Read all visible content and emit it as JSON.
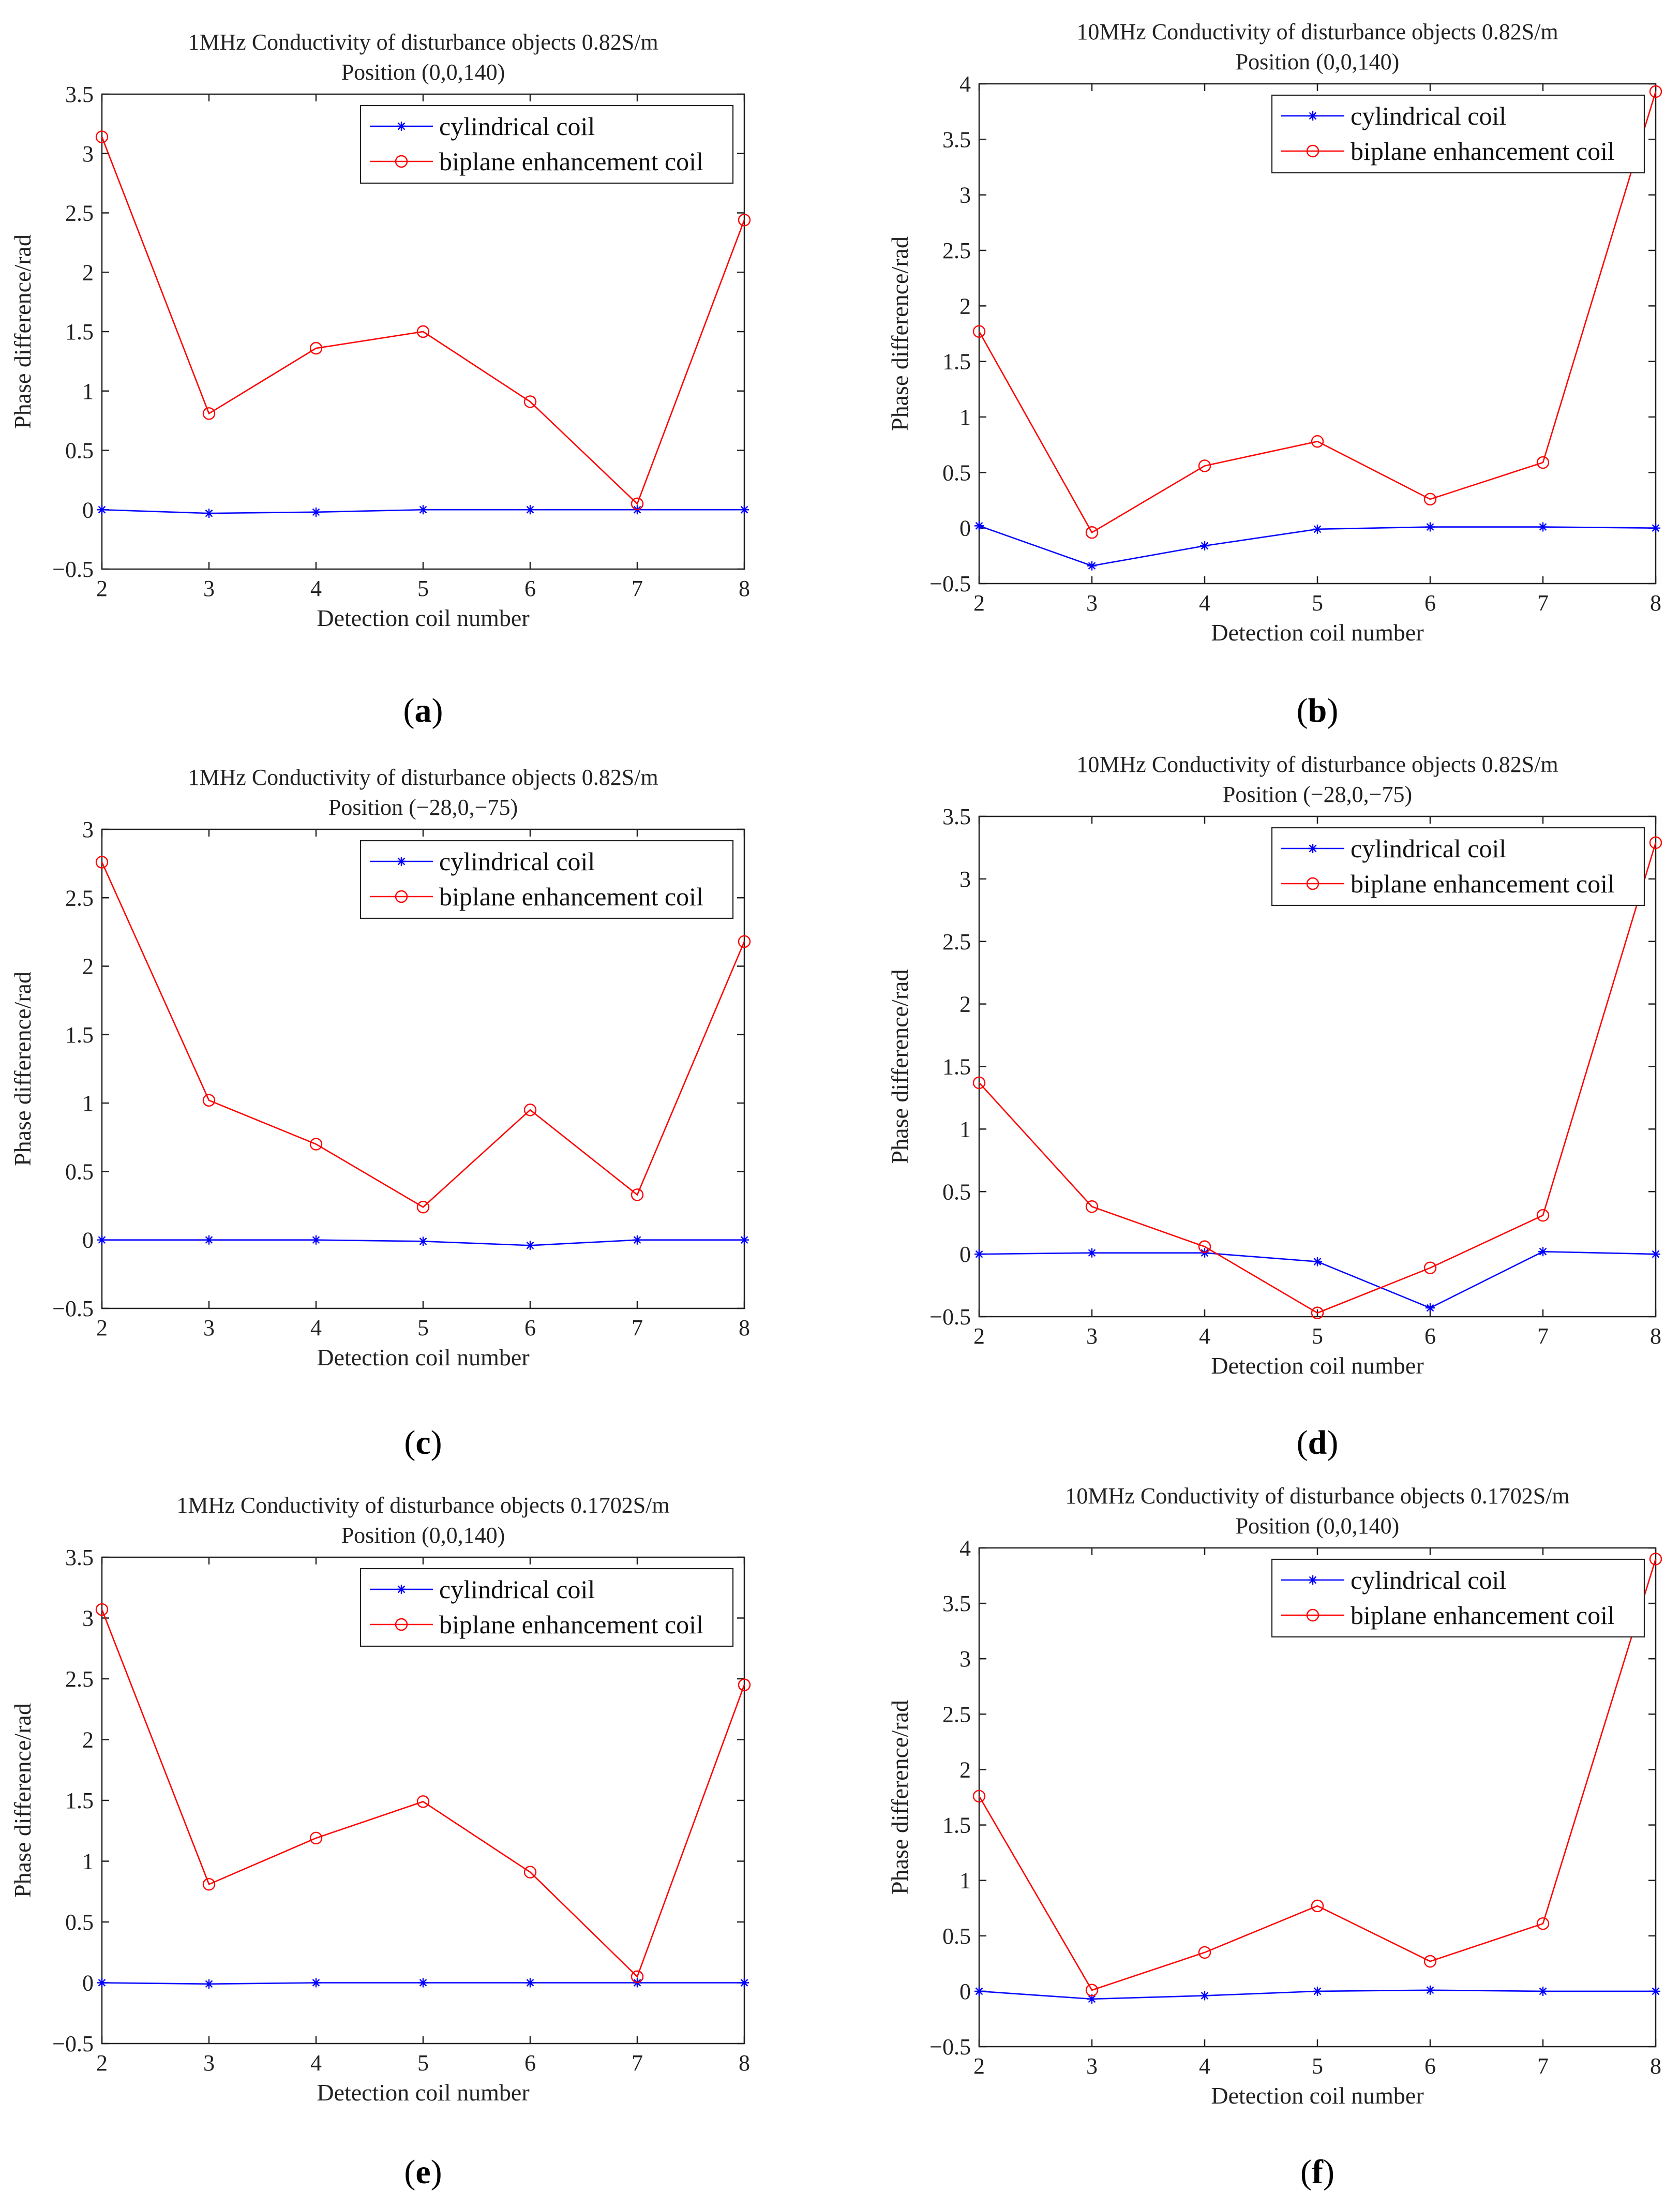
{
  "figure": {
    "legend": [
      "cylindrical coil",
      "biplane enhancement coil"
    ],
    "series_colors": [
      "#0000ff",
      "#ff0000"
    ],
    "marker_icons": [
      "asterisk-icon",
      "circle-icon"
    ]
  },
  "chart_data": [
    {
      "type": "line",
      "caption_letter": "a",
      "title": [
        "1MHz Conductivity of disturbance objects 0.82S/m",
        "Position (0,0,140)"
      ],
      "xlabel": "Detection coil number",
      "ylabel": "Phase difference/rad",
      "x": [
        2,
        3,
        4,
        5,
        6,
        7,
        8
      ],
      "xlim": [
        2,
        8
      ],
      "ylim": [
        -0.5,
        3.5
      ],
      "yticks": [
        -0.5,
        0,
        0.5,
        1,
        1.5,
        2,
        2.5,
        3,
        3.5
      ],
      "ytick_labels": [
        "−0.5",
        "0",
        "0.5",
        "1",
        "1.5",
        "2",
        "2.5",
        "3",
        "3.5"
      ],
      "xtick_labels": [
        "2",
        "3",
        "4",
        "5",
        "6",
        "7",
        "8"
      ],
      "legend_position": "top-right",
      "series": [
        {
          "name": "cylindrical coil",
          "values": [
            0.0,
            -0.03,
            -0.02,
            0.0,
            0.0,
            0.0,
            0.0
          ]
        },
        {
          "name": "biplane enhancement coil",
          "values": [
            3.14,
            0.81,
            1.36,
            1.5,
            0.91,
            0.05,
            2.44
          ]
        }
      ]
    },
    {
      "type": "line",
      "caption_letter": "b",
      "title": [
        "10MHz Conductivity of disturbance objects 0.82S/m",
        "Position (0,0,140)"
      ],
      "xlabel": "Detection coil number",
      "ylabel": "Phase difference/rad",
      "x": [
        2,
        3,
        4,
        5,
        6,
        7,
        8
      ],
      "xlim": [
        2,
        8
      ],
      "ylim": [
        -0.5,
        4
      ],
      "yticks": [
        -0.5,
        0,
        0.5,
        1,
        1.5,
        2,
        2.5,
        3,
        3.5,
        4
      ],
      "ytick_labels": [
        "−0.5",
        "0",
        "0.5",
        "1",
        "1.5",
        "2",
        "2.5",
        "3",
        "3.5",
        "4"
      ],
      "xtick_labels": [
        "2",
        "3",
        "4",
        "5",
        "6",
        "7",
        "8"
      ],
      "legend_position": "top-right",
      "series": [
        {
          "name": "cylindrical coil",
          "values": [
            0.02,
            -0.34,
            -0.16,
            -0.01,
            0.01,
            0.01,
            0.0
          ]
        },
        {
          "name": "biplane enhancement coil",
          "values": [
            1.77,
            -0.04,
            0.56,
            0.78,
            0.26,
            0.59,
            3.93
          ]
        }
      ]
    },
    {
      "type": "line",
      "caption_letter": "c",
      "title": [
        "1MHz Conductivity of disturbance objects 0.82S/m",
        "Position (−28,0,−75)"
      ],
      "xlabel": "Detection coil number",
      "ylabel": "Phase difference/rad",
      "x": [
        2,
        3,
        4,
        5,
        6,
        7,
        8
      ],
      "xlim": [
        2,
        8
      ],
      "ylim": [
        -0.5,
        3
      ],
      "yticks": [
        -0.5,
        0,
        0.5,
        1,
        1.5,
        2,
        2.5,
        3
      ],
      "ytick_labels": [
        "−0.5",
        "0",
        "0.5",
        "1",
        "1.5",
        "2",
        "2.5",
        "3"
      ],
      "xtick_labels": [
        "2",
        "3",
        "4",
        "5",
        "6",
        "7",
        "8"
      ],
      "legend_position": "top-right",
      "series": [
        {
          "name": "cylindrical coil",
          "values": [
            0.0,
            0.0,
            0.0,
            -0.01,
            -0.04,
            0.0,
            0.0
          ]
        },
        {
          "name": "biplane enhancement coil",
          "values": [
            2.76,
            1.02,
            0.7,
            0.24,
            0.95,
            0.33,
            2.18
          ]
        }
      ]
    },
    {
      "type": "line",
      "caption_letter": "d",
      "title": [
        "10MHz Conductivity of disturbance objects 0.82S/m",
        "Position (−28,0,−75)"
      ],
      "xlabel": "Detection coil number",
      "ylabel": "Phase difference/rad",
      "x": [
        2,
        3,
        4,
        5,
        6,
        7,
        8
      ],
      "xlim": [
        2,
        8
      ],
      "ylim": [
        -0.5,
        3.5
      ],
      "yticks": [
        -0.5,
        0,
        0.5,
        1,
        1.5,
        2,
        2.5,
        3,
        3.5
      ],
      "ytick_labels": [
        "−0.5",
        "0",
        "0.5",
        "1",
        "1.5",
        "2",
        "2.5",
        "3",
        "3.5"
      ],
      "xtick_labels": [
        "2",
        "3",
        "4",
        "5",
        "6",
        "7",
        "8"
      ],
      "legend_position": "top-right",
      "series": [
        {
          "name": "cylindrical coil",
          "values": [
            0.0,
            0.01,
            0.01,
            -0.06,
            -0.43,
            0.02,
            0.0
          ]
        },
        {
          "name": "biplane enhancement coil",
          "values": [
            1.37,
            0.38,
            0.06,
            -0.47,
            -0.11,
            0.31,
            3.29
          ]
        }
      ]
    },
    {
      "type": "line",
      "caption_letter": "e",
      "title": [
        "1MHz Conductivity of disturbance objects 0.1702S/m",
        "Position (0,0,140)"
      ],
      "xlabel": "Detection coil number",
      "ylabel": "Phase difference/rad",
      "x": [
        2,
        3,
        4,
        5,
        6,
        7,
        8
      ],
      "xlim": [
        2,
        8
      ],
      "ylim": [
        -0.5,
        3.5
      ],
      "yticks": [
        -0.5,
        0,
        0.5,
        1,
        1.5,
        2,
        2.5,
        3,
        3.5
      ],
      "ytick_labels": [
        "−0.5",
        "0",
        "0.5",
        "1",
        "1.5",
        "2",
        "2.5",
        "3",
        "3.5"
      ],
      "xtick_labels": [
        "2",
        "3",
        "4",
        "5",
        "6",
        "7",
        "8"
      ],
      "legend_position": "top-right",
      "series": [
        {
          "name": "cylindrical coil",
          "values": [
            0.0,
            -0.01,
            0.0,
            0.0,
            0.0,
            0.0,
            0.0
          ]
        },
        {
          "name": "biplane enhancement coil",
          "values": [
            3.07,
            0.81,
            1.19,
            1.49,
            0.91,
            0.05,
            2.45
          ]
        }
      ]
    },
    {
      "type": "line",
      "caption_letter": "f",
      "title": [
        "10MHz Conductivity of disturbance objects 0.1702S/m",
        "Position (0,0,140)"
      ],
      "xlabel": "Detection coil number",
      "ylabel": "Phase difference/rad",
      "x": [
        2,
        3,
        4,
        5,
        6,
        7,
        8
      ],
      "xlim": [
        2,
        8
      ],
      "ylim": [
        -0.5,
        4
      ],
      "yticks": [
        -0.5,
        0,
        0.5,
        1,
        1.5,
        2,
        2.5,
        3,
        3.5,
        4
      ],
      "ytick_labels": [
        "−0.5",
        "0",
        "0.5",
        "1",
        "1.5",
        "2",
        "2.5",
        "3",
        "3.5",
        "4"
      ],
      "xtick_labels": [
        "2",
        "3",
        "4",
        "5",
        "6",
        "7",
        "8"
      ],
      "legend_position": "top-right",
      "series": [
        {
          "name": "cylindrical coil",
          "values": [
            0.0,
            -0.07,
            -0.04,
            0.0,
            0.01,
            0.0,
            0.0
          ]
        },
        {
          "name": "biplane enhancement coil",
          "values": [
            1.76,
            0.01,
            0.35,
            0.77,
            0.27,
            0.61,
            3.9
          ]
        }
      ]
    }
  ]
}
